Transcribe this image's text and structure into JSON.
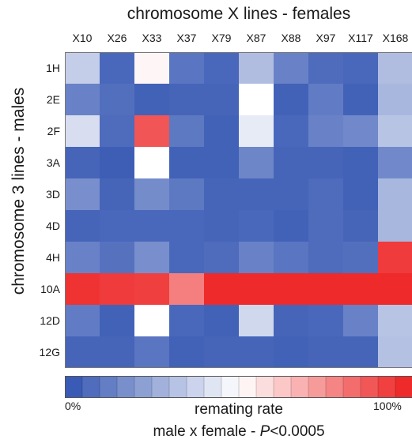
{
  "chart_data": {
    "type": "heatmap",
    "title": "chromosome X lines - females",
    "ylabel": "chromosome 3 lines - males",
    "columns": [
      "X10",
      "X26",
      "X33",
      "X37",
      "X79",
      "X87",
      "X88",
      "X97",
      "X117",
      "X168"
    ],
    "rows": [
      "1H",
      "2E",
      "2F",
      "3A",
      "3D",
      "4D",
      "4H",
      "10A",
      "12D",
      "12G"
    ],
    "values": [
      [
        35,
        4,
        52,
        8,
        4,
        30,
        12,
        5,
        4,
        30
      ],
      [
        12,
        6,
        2,
        3,
        3,
        50,
        2,
        10,
        2,
        28
      ],
      [
        40,
        5,
        90,
        9,
        2,
        44,
        4,
        12,
        14,
        32
      ],
      [
        3,
        1,
        50,
        2,
        2,
        13,
        3,
        3,
        2,
        14
      ],
      [
        16,
        3,
        15,
        9,
        3,
        3,
        3,
        5,
        2,
        28
      ],
      [
        3,
        4,
        4,
        4,
        3,
        4,
        2,
        5,
        3,
        28
      ],
      [
        12,
        7,
        16,
        4,
        5,
        12,
        8,
        5,
        6,
        96
      ],
      [
        98,
        96,
        95,
        80,
        100,
        100,
        100,
        100,
        100,
        100
      ],
      [
        10,
        2,
        50,
        4,
        2,
        38,
        3,
        4,
        12,
        32
      ],
      [
        3,
        3,
        8,
        2,
        3,
        3,
        2,
        3,
        3,
        31
      ]
    ],
    "color_scale": {
      "min": 0,
      "max": 100,
      "min_label": "0%",
      "max_label": "100%",
      "label": "remating rate",
      "low_color": "#3a5bb5",
      "mid_color": "#ffffff",
      "high_color": "#ee2a2a",
      "steps": 20
    },
    "annotation": {
      "prefix": "male x female - ",
      "p_symbol": "P",
      "suffix": "<0.0005"
    }
  }
}
